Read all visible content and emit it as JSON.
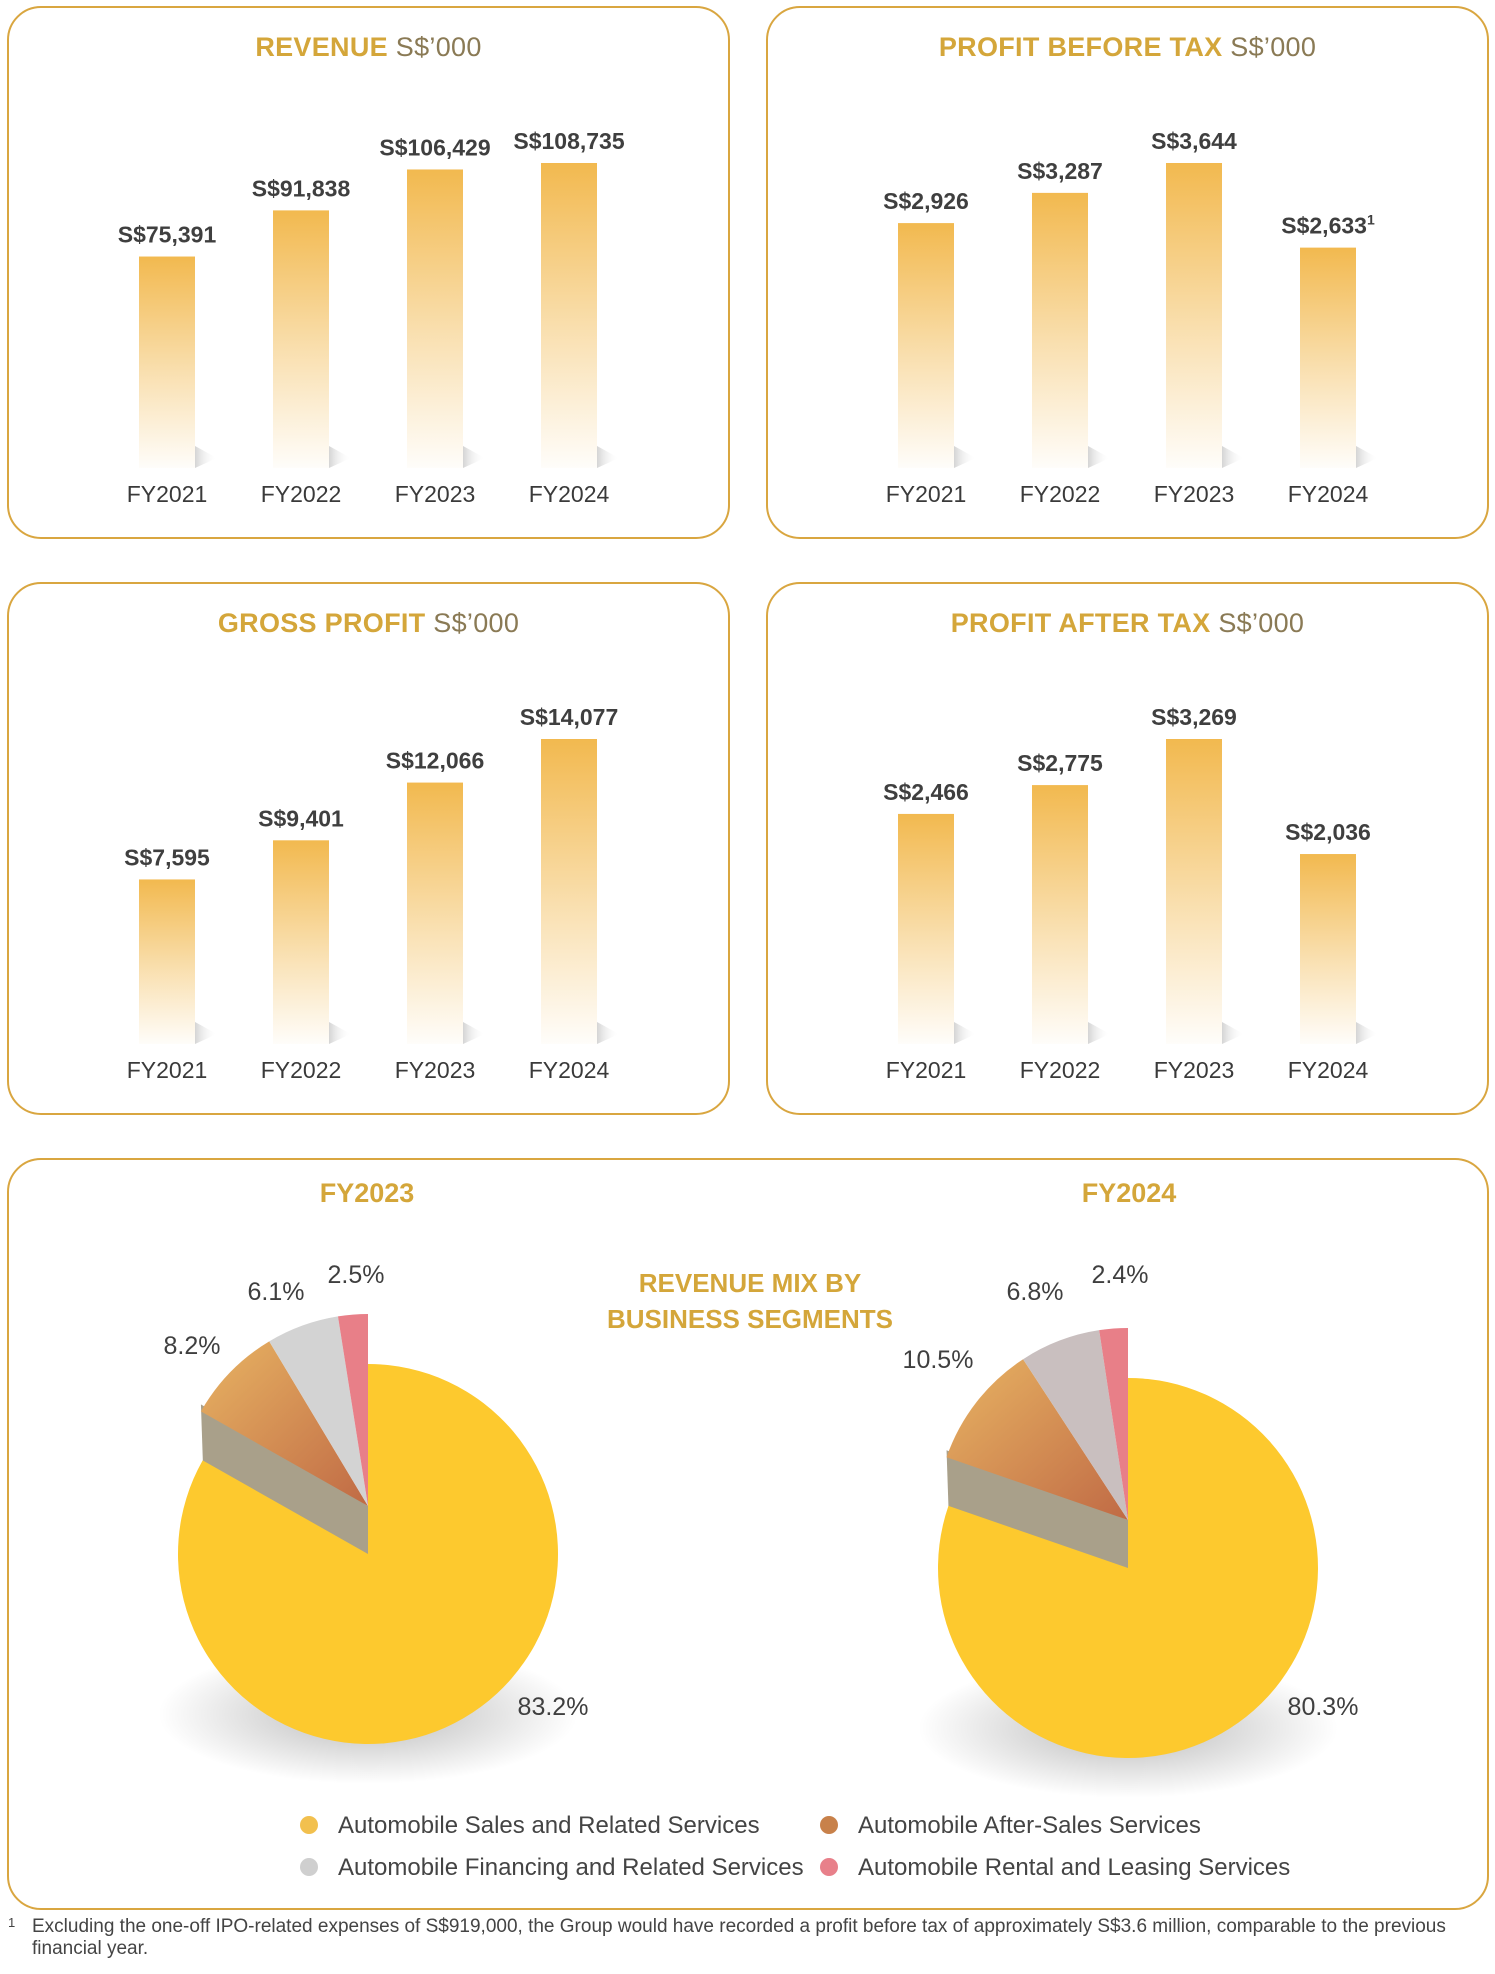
{
  "chart_data": [
    {
      "type": "bar",
      "title": "REVENUE",
      "unit": "S$’000",
      "categories": [
        "FY2021",
        "FY2022",
        "FY2023",
        "FY2024"
      ],
      "values": [
        75391,
        91838,
        106429,
        108735
      ],
      "labels": [
        "S$75,391",
        "S$91,838",
        "S$106,429",
        "S$108,735"
      ],
      "sup": [
        "",
        "",
        "",
        ""
      ]
    },
    {
      "type": "bar",
      "title": "PROFIT BEFORE TAX",
      "unit": "S$’000",
      "categories": [
        "FY2021",
        "FY2022",
        "FY2023",
        "FY2024"
      ],
      "values": [
        2926,
        3287,
        3644,
        2633
      ],
      "labels": [
        "S$2,926",
        "S$3,287",
        "S$3,644",
        "S$2,633"
      ],
      "sup": [
        "",
        "",
        "",
        "1"
      ]
    },
    {
      "type": "bar",
      "title": "GROSS PROFIT",
      "unit": "S$’000",
      "categories": [
        "FY2021",
        "FY2022",
        "FY2023",
        "FY2024"
      ],
      "values": [
        7595,
        9401,
        12066,
        14077
      ],
      "labels": [
        "S$7,595",
        "S$9,401",
        "S$12,066",
        "S$14,077"
      ],
      "sup": [
        "",
        "",
        "",
        ""
      ]
    },
    {
      "type": "bar",
      "title": "PROFIT AFTER TAX",
      "unit": "S$’000",
      "categories": [
        "FY2021",
        "FY2022",
        "FY2023",
        "FY2024"
      ],
      "values": [
        2466,
        2775,
        3269,
        2036
      ],
      "labels": [
        "S$2,466",
        "S$2,775",
        "S$3,269",
        "S$2,036"
      ],
      "sup": [
        "",
        "",
        "",
        ""
      ]
    },
    {
      "type": "pie",
      "title": "FY2023",
      "categories": [
        "Automobile Sales and Related Services",
        "Automobile After-Sales Services",
        "Automobile Financing and Related Services",
        "Automobile Rental and Leasing Services"
      ],
      "values": [
        83.2,
        8.2,
        6.1,
        2.5
      ],
      "labels": [
        "83.2%",
        "8.2%",
        "6.1%",
        "2.5%"
      ]
    },
    {
      "type": "pie",
      "title": "FY2024",
      "categories": [
        "Automobile Sales and Related Services",
        "Automobile After-Sales Services",
        "Automobile Financing and Related Services",
        "Automobile Rental and Leasing Services"
      ],
      "values": [
        80.3,
        10.5,
        6.8,
        2.4
      ],
      "labels": [
        "80.3%",
        "10.5%",
        "6.8%",
        "2.4%"
      ]
    }
  ],
  "mix_title_line1": "REVENUE MIX BY",
  "mix_title_line2": "BUSINESS SEGMENTS",
  "legend": [
    {
      "label": "Automobile Sales and Related Services",
      "color": "#f2c04e"
    },
    {
      "label": "Automobile After-Sales Services",
      "color": "#c8814a"
    },
    {
      "label": "Automobile Financing and Related Services",
      "color": "#cfcfcf"
    },
    {
      "label": "Automobile Rental and Leasing Services",
      "color": "#e8808a"
    }
  ],
  "colors": {
    "bar_top": "#f2b94f",
    "pie_sales": "#fdc92e",
    "pie_sales_side": "#a9a08a",
    "pie_aftersales_a": "#e8b463",
    "pie_aftersales_b": "#c06a45",
    "pie_financing_2023": "#d3d3d3",
    "pie_financing_2024": "#c9bfbf",
    "pie_rental": "#e87f88"
  },
  "footnote": {
    "mark": "1",
    "text": "Excluding the one-off IPO-related expenses of S$919,000, the Group would have recorded a profit before tax of approximately S$3.6 million, comparable to the previous financial year."
  }
}
